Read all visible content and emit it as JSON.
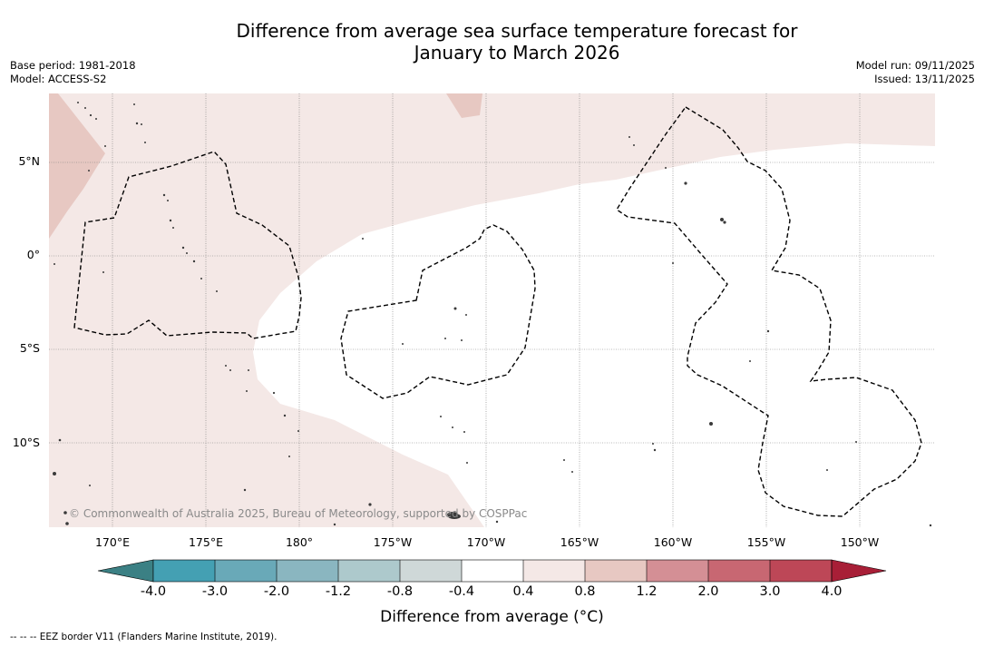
{
  "title_line1": "Difference from average sea surface temperature forecast for",
  "title_line2": "January to March 2026",
  "meta": {
    "base_period": "Base period: 1981-2018",
    "model": "Model: ACCESS-S2",
    "model_run": "Model run: 09/11/2025",
    "issued": "Issued: 13/11/2025"
  },
  "map": {
    "copyright": "© Commonwealth of Australia 2025, Bureau of Meteorology, supported by COSPPac",
    "lat_labels": [
      "5°N",
      "0°",
      "5°S",
      "10°S"
    ],
    "lon_labels": [
      "170°E",
      "175°E",
      "180°",
      "175°W",
      "170°W",
      "165°W",
      "160°W",
      "155°W",
      "150°W"
    ],
    "lat_range": [
      -14.5,
      8.5
    ],
    "lon_range": [
      166.5,
      213.5
    ],
    "colors": {
      "anom_0_4_to_0_8": "#f4e8e6",
      "anom_0_8_to_1_2": "#e7c8c2",
      "neutral": "#ffffff",
      "eez_border": "#000000"
    }
  },
  "colorbar": {
    "ticks": [
      "-4.0",
      "-3.0",
      "-2.0",
      "-1.2",
      "-0.8",
      "-0.4",
      "0.4",
      "0.8",
      "1.2",
      "2.0",
      "3.0",
      "4.0"
    ],
    "colors": [
      "#44a0b3",
      "#69a9b8",
      "#8ab6c0",
      "#adc9cc",
      "#cfd8d8",
      "#ffffff",
      "#f4e8e6",
      "#e7c8c2",
      "#d48f95",
      "#c86772",
      "#bd4757"
    ],
    "under_color": "#3b8084",
    "over_color": "#a81f37",
    "label": "Difference from average ($^\\circ$C)",
    "label_display": "Difference from average (°C)"
  },
  "footer": "--  --  -- EEZ border V11 (Flanders Marine Institute, 2019)."
}
